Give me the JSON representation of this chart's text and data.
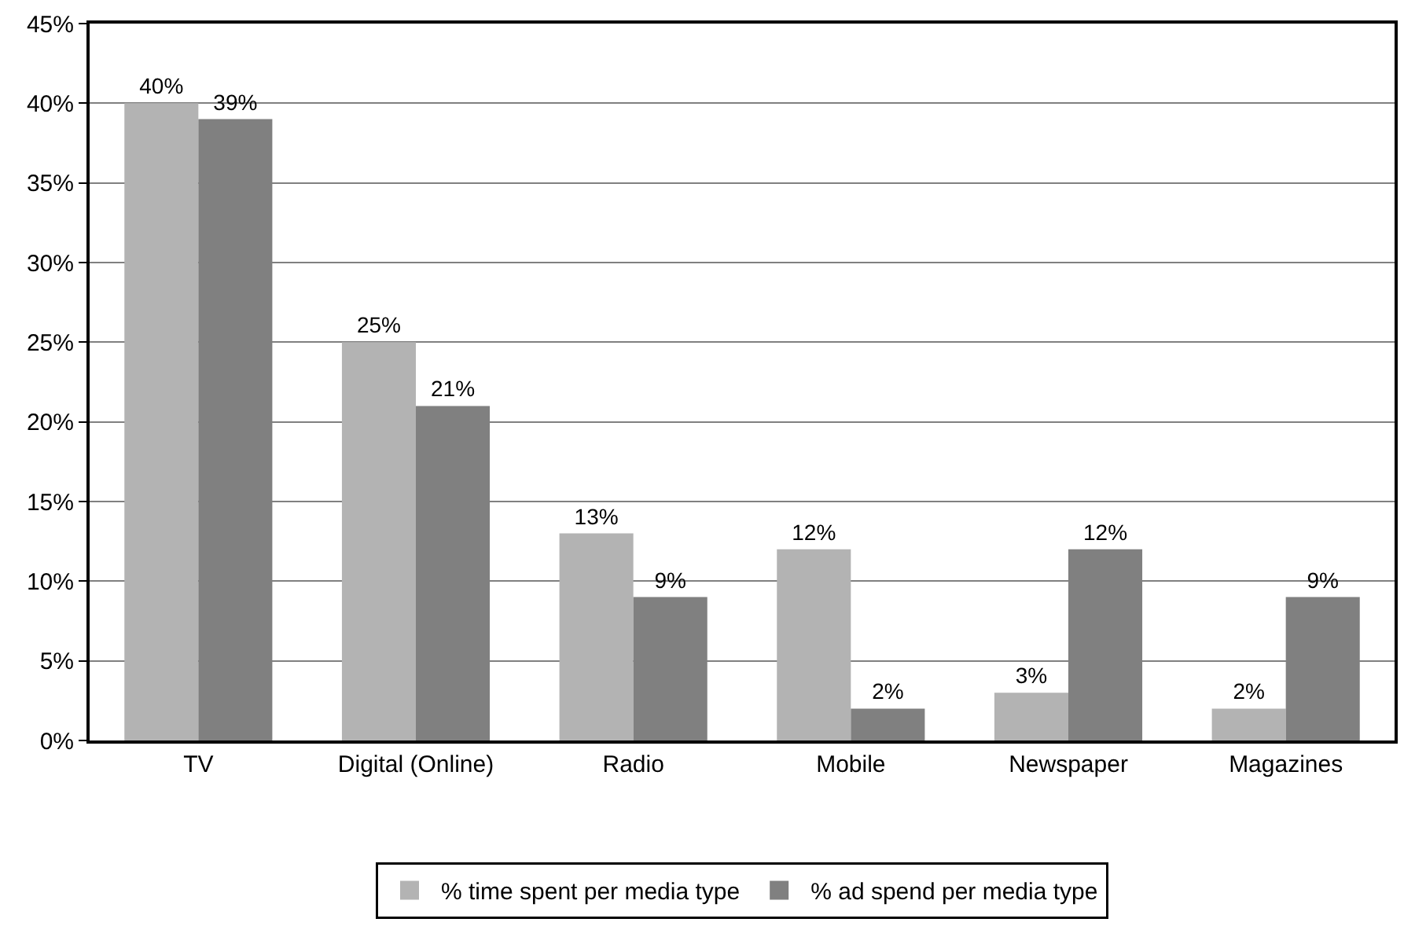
{
  "chart_data": {
    "type": "bar",
    "categories": [
      "TV",
      "Digital (Online)",
      "Radio",
      "Mobile",
      "Newspaper",
      "Magazines"
    ],
    "series": [
      {
        "name": "% time spent per media type",
        "color": "#b3b3b3",
        "values": [
          40,
          25,
          13,
          12,
          3,
          2
        ],
        "value_labels": [
          "40%",
          "25%",
          "13%",
          "12%",
          "3%",
          "2%"
        ]
      },
      {
        "name": "% ad spend per media type",
        "color": "#808080",
        "values": [
          39,
          21,
          9,
          2,
          12,
          9
        ],
        "value_labels": [
          "39%",
          "21%",
          "9%",
          "2%",
          "12%",
          "9%"
        ]
      }
    ],
    "ylim": [
      0,
      45
    ],
    "yticks": [
      {
        "value": 0,
        "label": "0%"
      },
      {
        "value": 5,
        "label": "5%"
      },
      {
        "value": 10,
        "label": "10%"
      },
      {
        "value": 15,
        "label": "15%"
      },
      {
        "value": 20,
        "label": "20%"
      },
      {
        "value": 25,
        "label": "25%"
      },
      {
        "value": 30,
        "label": "30%"
      },
      {
        "value": 35,
        "label": "35%"
      },
      {
        "value": 40,
        "label": "40%"
      },
      {
        "value": 45,
        "label": "45%"
      }
    ],
    "grid": "y",
    "legend": "bottom"
  }
}
